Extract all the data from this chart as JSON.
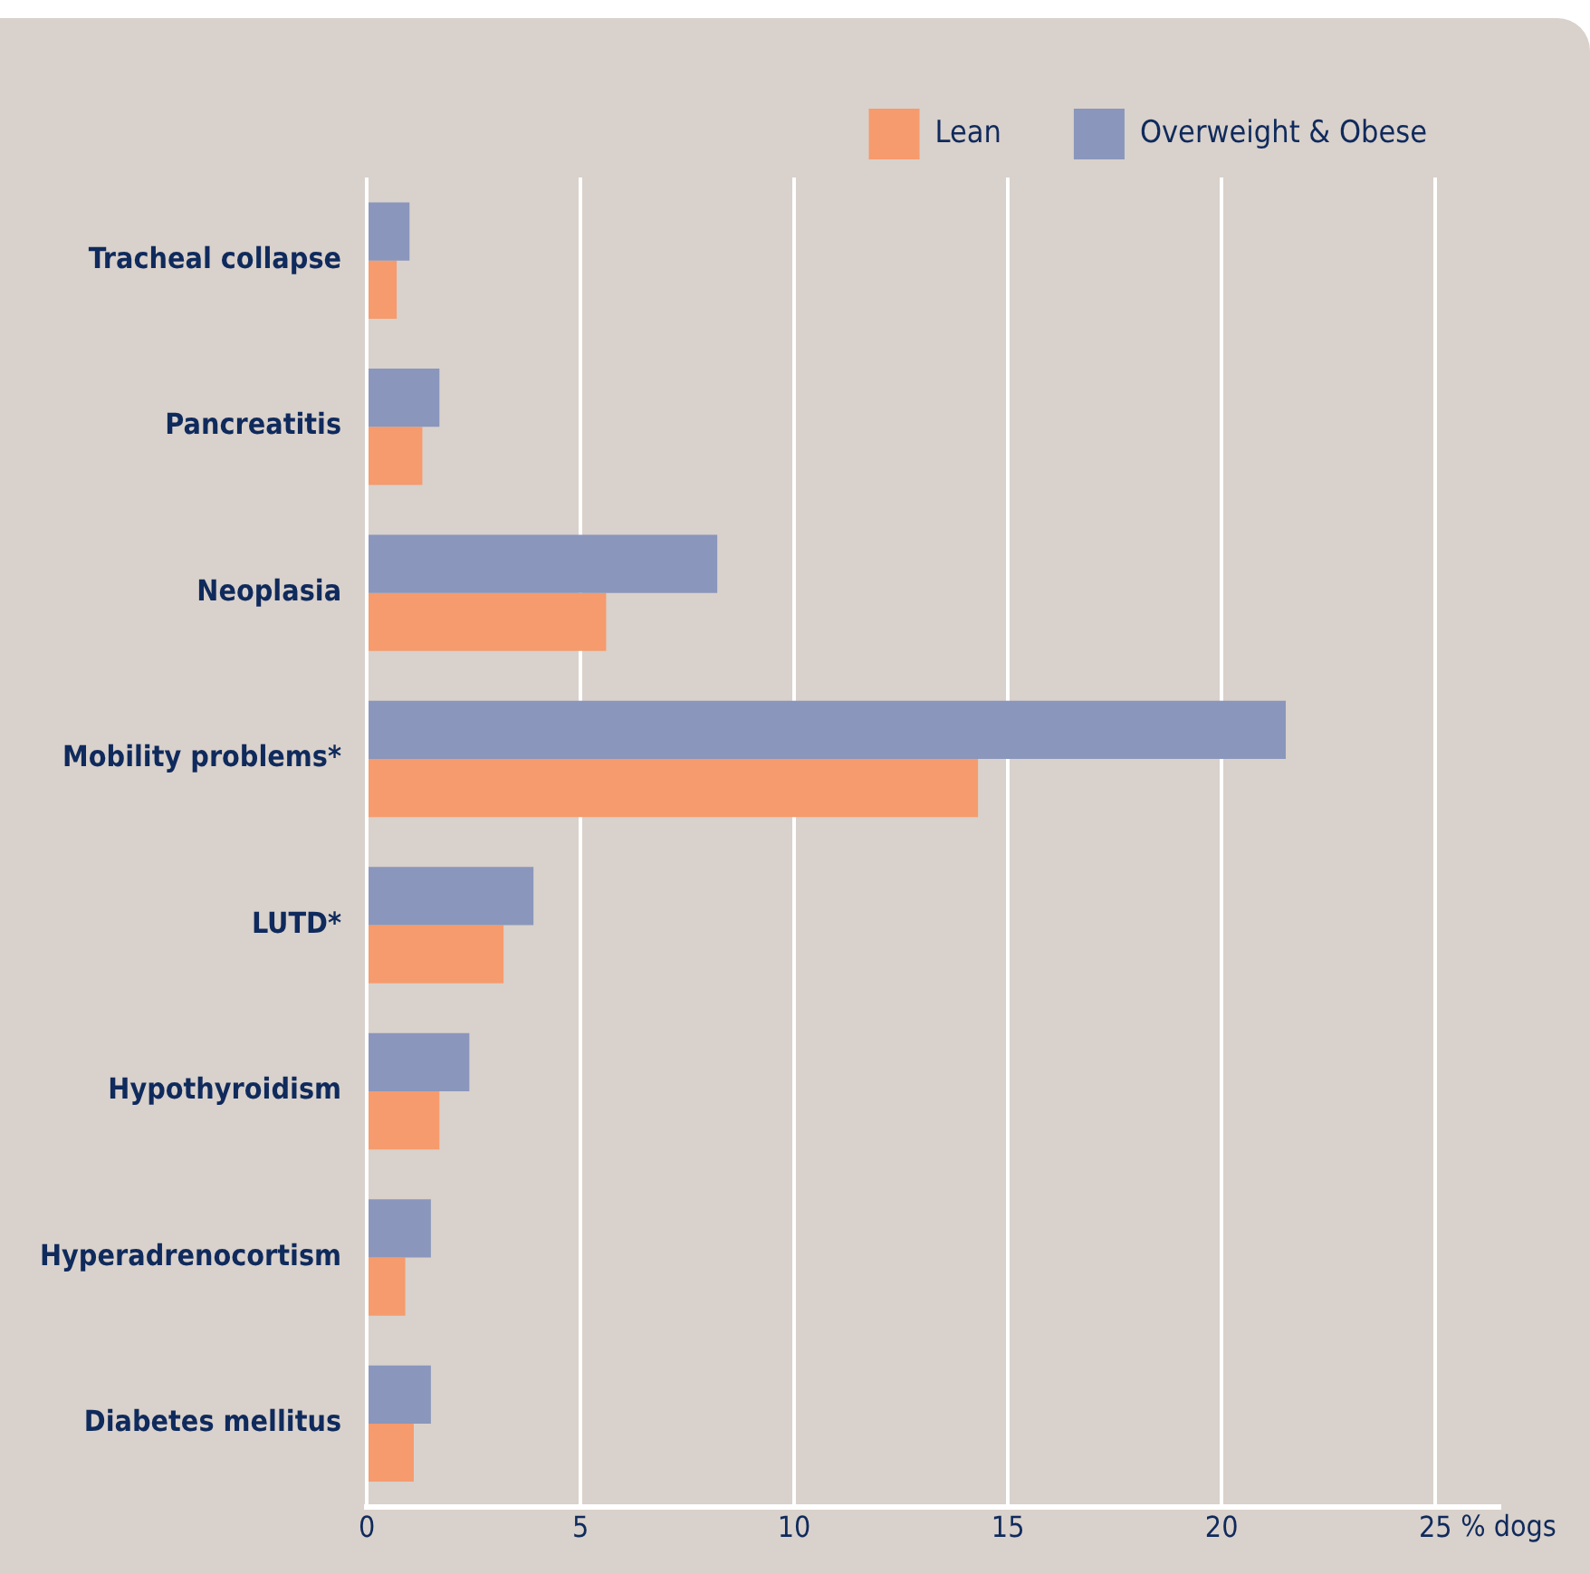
{
  "chart_data": {
    "type": "bar",
    "orientation": "horizontal",
    "xlabel": "% dogs",
    "categories": [
      "Tracheal collapse",
      "Pancreatitis",
      "Neoplasia",
      "Mobility problems*",
      "LUTD*",
      "Hypothyroidism",
      "Hyperadrenocortism",
      "Diabetes mellitus"
    ],
    "series": [
      {
        "name": "Lean",
        "color": "#f59b6d",
        "values": [
          0.7,
          1.3,
          5.6,
          14.3,
          3.2,
          1.7,
          0.9,
          1.1
        ]
      },
      {
        "name": "Overweight & Obese",
        "color": "#8a96bb",
        "values": [
          1.0,
          1.7,
          8.2,
          21.5,
          3.9,
          2.4,
          1.5,
          1.5
        ]
      }
    ],
    "xlim": [
      0,
      26.5
    ],
    "xticks": [
      0,
      5,
      10,
      15,
      20,
      25
    ],
    "grid": "x",
    "legend": "top right"
  }
}
